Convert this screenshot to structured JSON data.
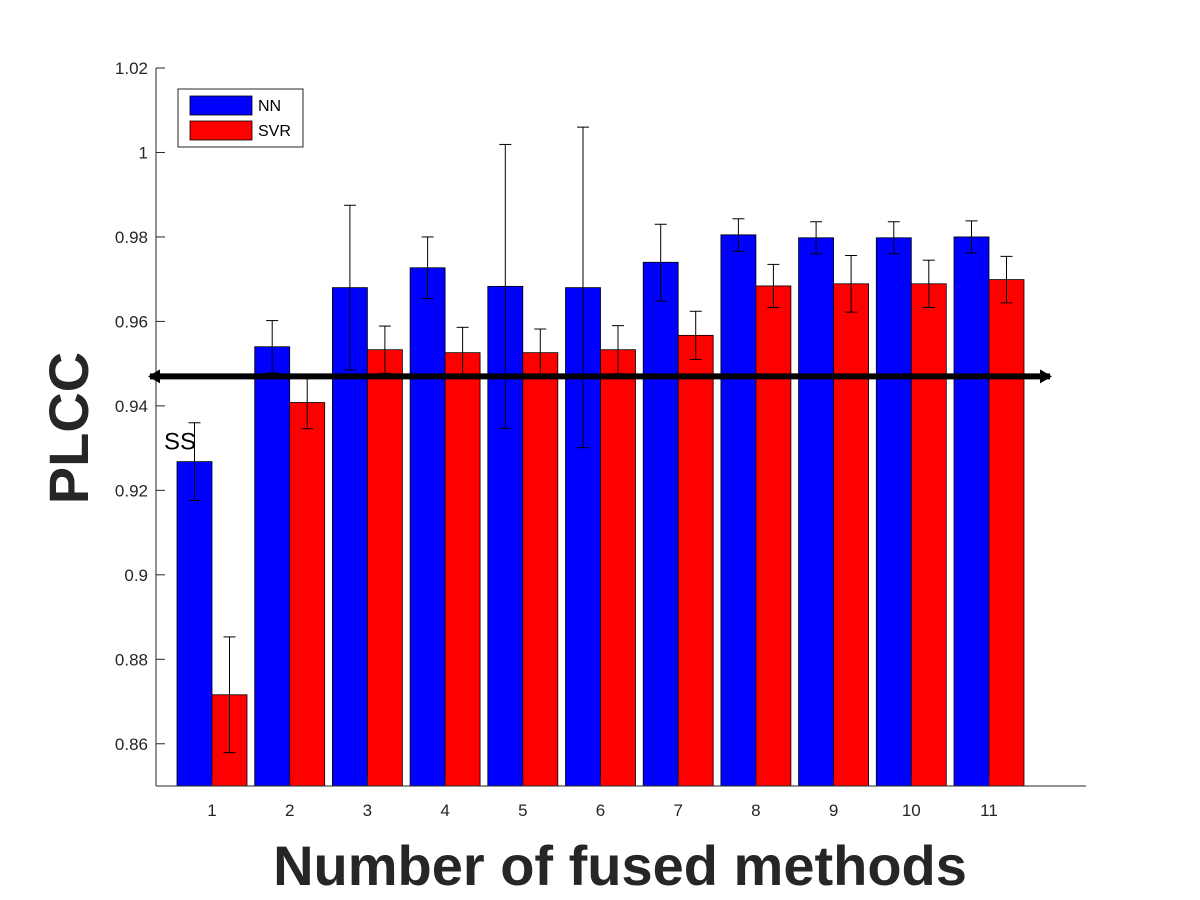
{
  "chart_data": {
    "type": "bar",
    "xlabel": "Number of fused methods",
    "ylabel": "PLCC",
    "categories": [
      "1",
      "2",
      "3",
      "4",
      "5",
      "6",
      "7",
      "8",
      "9",
      "10",
      "11"
    ],
    "ylim": [
      0.85,
      1.02
    ],
    "yticks": [
      0.86,
      0.88,
      0.9,
      0.92,
      0.94,
      0.96,
      0.98,
      1,
      1.02
    ],
    "ytick_labels": [
      "0.86",
      "0.88",
      "0.9",
      "0.92",
      "0.94",
      "0.96",
      "0.98",
      "1",
      "1.02"
    ],
    "grid": false,
    "legend_placement": "top-left",
    "series": [
      {
        "name": "NN",
        "color": "#0000ff",
        "values": [
          0.9268,
          0.954,
          0.968,
          0.9727,
          0.9683,
          0.968,
          0.974,
          0.9805,
          0.9798,
          0.9798,
          0.98
        ],
        "err_low": [
          0.9176,
          0.9478,
          0.9485,
          0.9654,
          0.9347,
          0.9301,
          0.9648,
          0.9766,
          0.976,
          0.976,
          0.9762
        ],
        "err_high": [
          0.936,
          0.9602,
          0.9875,
          0.98,
          1.0019,
          1.006,
          0.983,
          0.9843,
          0.9836,
          0.9836,
          0.9838
        ]
      },
      {
        "name": "SVR",
        "color": "#ff0000",
        "values": [
          0.8716,
          0.9408,
          0.9533,
          0.9526,
          0.9526,
          0.9533,
          0.9567,
          0.9684,
          0.9689,
          0.9689,
          0.9699
        ],
        "err_low": [
          0.8579,
          0.9346,
          0.9477,
          0.9466,
          0.947,
          0.9476,
          0.951,
          0.9633,
          0.9622,
          0.9633,
          0.9644
        ],
        "err_high": [
          0.8853,
          0.947,
          0.9589,
          0.9586,
          0.9582,
          0.959,
          0.9624,
          0.9735,
          0.9756,
          0.9745,
          0.9754
        ]
      }
    ],
    "reference_line": {
      "value": 0.947,
      "color": "#000000"
    },
    "annotations": [
      {
        "text": "SS",
        "category": "1",
        "value": 0.933
      }
    ]
  }
}
